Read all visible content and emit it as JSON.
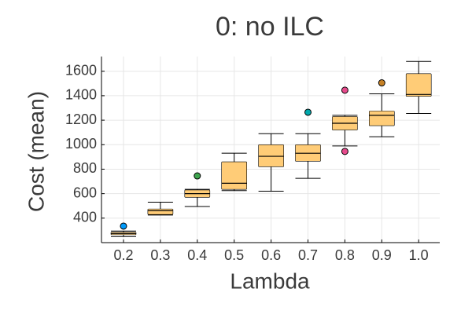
{
  "chart_data": {
    "type": "box",
    "title": "0: no ILC",
    "xlabel": "Lambda",
    "ylabel": "Cost (mean)",
    "ylim": [
      200,
      1720
    ],
    "yticks": [
      400,
      600,
      800,
      1000,
      1200,
      1400,
      1600
    ],
    "grid": true,
    "legend": "none",
    "box_fill": "#ffcc77",
    "box_stroke": "#000000",
    "categories": [
      "0.2",
      "0.3",
      "0.4",
      "0.5",
      "0.6",
      "0.7",
      "0.8",
      "0.9",
      "1.0"
    ],
    "boxes": [
      {
        "x": "0.2",
        "whisker_low": 250,
        "q1": 265,
        "median": 275,
        "q3": 285,
        "whisker_high": 295,
        "outliers": [
          {
            "y": 335,
            "color": "#009AFA"
          }
        ]
      },
      {
        "x": "0.3",
        "whisker_low": 425,
        "q1": 430,
        "median": 460,
        "q3": 475,
        "whisker_high": 530,
        "outliers": []
      },
      {
        "x": "0.4",
        "whisker_low": 495,
        "q1": 570,
        "median": 600,
        "q3": 630,
        "whisker_high": 635,
        "outliers": [
          {
            "y": 745,
            "color": "#3EA44E"
          }
        ]
      },
      {
        "x": "0.5",
        "whisker_low": 625,
        "q1": 635,
        "median": 685,
        "q3": 860,
        "whisker_high": 930,
        "outliers": []
      },
      {
        "x": "0.6",
        "whisker_low": 620,
        "q1": 820,
        "median": 905,
        "q3": 1000,
        "whisker_high": 1090,
        "outliers": []
      },
      {
        "x": "0.7",
        "whisker_low": 725,
        "q1": 865,
        "median": 930,
        "q3": 1000,
        "whisker_high": 1090,
        "outliers": [
          {
            "y": 1265,
            "color": "#00A9AD"
          }
        ]
      },
      {
        "x": "0.8",
        "whisker_low": 990,
        "q1": 1120,
        "median": 1175,
        "q3": 1230,
        "whisker_high": 1240,
        "outliers": [
          {
            "y": 1445,
            "color": "#E64A8C"
          },
          {
            "y": 945,
            "color": "#E64A8C"
          }
        ]
      },
      {
        "x": "0.9",
        "whisker_low": 1065,
        "q1": 1155,
        "median": 1240,
        "q3": 1275,
        "whisker_high": 1415,
        "outliers": [
          {
            "y": 1505,
            "color": "#C68125"
          }
        ]
      },
      {
        "x": "1.0",
        "whisker_low": 1255,
        "q1": 1395,
        "median": 1410,
        "q3": 1580,
        "whisker_high": 1680,
        "outliers": []
      }
    ]
  }
}
